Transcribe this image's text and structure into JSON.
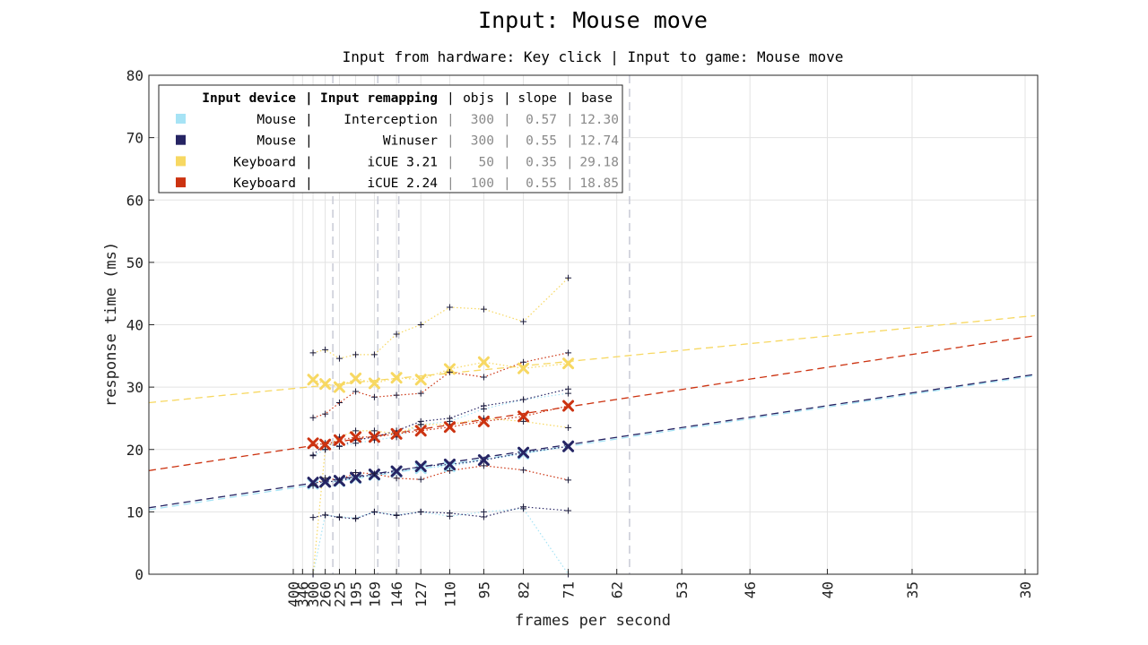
{
  "chart_data": {
    "type": "line",
    "title": "Input: Mouse move",
    "subtitle": "Input from hardware: Key click | Input to game: Mouse move",
    "xlabel": "frames per second",
    "ylabel": "response time (ms)",
    "ylim": [
      0,
      80
    ],
    "y_ticks": [
      0,
      10,
      20,
      30,
      40,
      50,
      60,
      70,
      80
    ],
    "x_ticks": [
      400,
      346,
      300,
      260,
      225,
      195,
      169,
      146,
      127,
      110,
      95,
      82,
      71,
      62,
      53,
      46,
      40,
      35,
      30
    ],
    "grid": true,
    "legend_position": "top-left",
    "legend": {
      "header_device": "Input device",
      "header_remap": "Input remapping",
      "header_objs": "objs",
      "header_slope": "slope",
      "header_base": "base",
      "separator": "|"
    },
    "vertical_markers_fps": [
      240,
      165,
      144,
      60
    ],
    "categories": [
      300,
      260,
      225,
      195,
      169,
      146,
      127,
      110,
      95,
      82,
      71
    ],
    "series": [
      {
        "name": "Mouse",
        "remap": "Interception",
        "objs": "300",
        "slope": "0.57",
        "base": "12.30",
        "color": "#a6e3f5",
        "mean": [
          14.5,
          14.8,
          14.9,
          15.4,
          15.9,
          16.4,
          17.0,
          17.3,
          18.3,
          19.3,
          20.5
        ],
        "upper": [
          19.0,
          20.0,
          20.5,
          21.0,
          21.5,
          22.0,
          24.0,
          24.5,
          26.5,
          28.0,
          29.0
        ],
        "lower": [
          0.0,
          9.5,
          9.2,
          9.0,
          10.0,
          9.5,
          10.0,
          9.3,
          10.0,
          10.5,
          0.0
        ],
        "fit_at_240": 14.8,
        "fit_at_30": 31.6
      },
      {
        "name": "Mouse",
        "remap": "Winuser",
        "objs": "300",
        "slope": "0.55",
        "base": "12.74",
        "color": "#262463",
        "mean": [
          14.7,
          14.8,
          15.0,
          15.5,
          16.0,
          16.5,
          17.3,
          17.6,
          18.3,
          19.5,
          20.5
        ],
        "upper": [
          19.1,
          21.0,
          20.5,
          21.5,
          22.0,
          23.0,
          24.5,
          25.0,
          27.0,
          28.0,
          29.7
        ],
        "lower": [
          9.1,
          9.5,
          9.1,
          8.9,
          10.0,
          9.4,
          10.0,
          9.8,
          9.2,
          10.8,
          10.2
        ],
        "fit_at_240": 15.1,
        "fit_at_30": 31.8
      },
      {
        "name": "Keyboard",
        "remap": "iCUE 3.21",
        "objs": "50",
        "slope": "0.35",
        "base": "29.18",
        "color": "#f7d862",
        "mean": [
          31.2,
          30.5,
          30.0,
          31.4,
          30.6,
          31.5,
          31.2,
          32.9,
          34.0,
          33.0,
          33.8
        ],
        "upper": [
          35.5,
          36.0,
          34.6,
          35.2,
          35.2,
          38.5,
          40.0,
          42.8,
          42.5,
          40.5,
          47.5
        ],
        "lower": [
          0.0,
          20.0,
          22.0,
          23.0,
          23.0,
          22.5,
          24.0,
          24.0,
          25.0,
          24.5,
          23.5
        ],
        "fit_at_240": 30.4,
        "fit_at_30": 41.3
      },
      {
        "name": "Keyboard",
        "remap": "iCUE 2.24",
        "objs": "100",
        "slope": "0.55",
        "base": "18.85",
        "color": "#cc3311",
        "mean": [
          21.0,
          20.8,
          21.5,
          22.0,
          22.0,
          22.5,
          23.0,
          23.6,
          24.5,
          25.3,
          27.0
        ],
        "upper": [
          25.1,
          25.7,
          27.5,
          29.3,
          28.4,
          28.7,
          29.0,
          32.4,
          31.6,
          34.0,
          35.5
        ],
        "lower": [
          14.2,
          15.4,
          15.1,
          16.3,
          16.1,
          15.4,
          15.2,
          16.6,
          17.4,
          16.7,
          15.1
        ],
        "fit_at_240": 21.1,
        "fit_at_30": 38.0
      }
    ]
  }
}
